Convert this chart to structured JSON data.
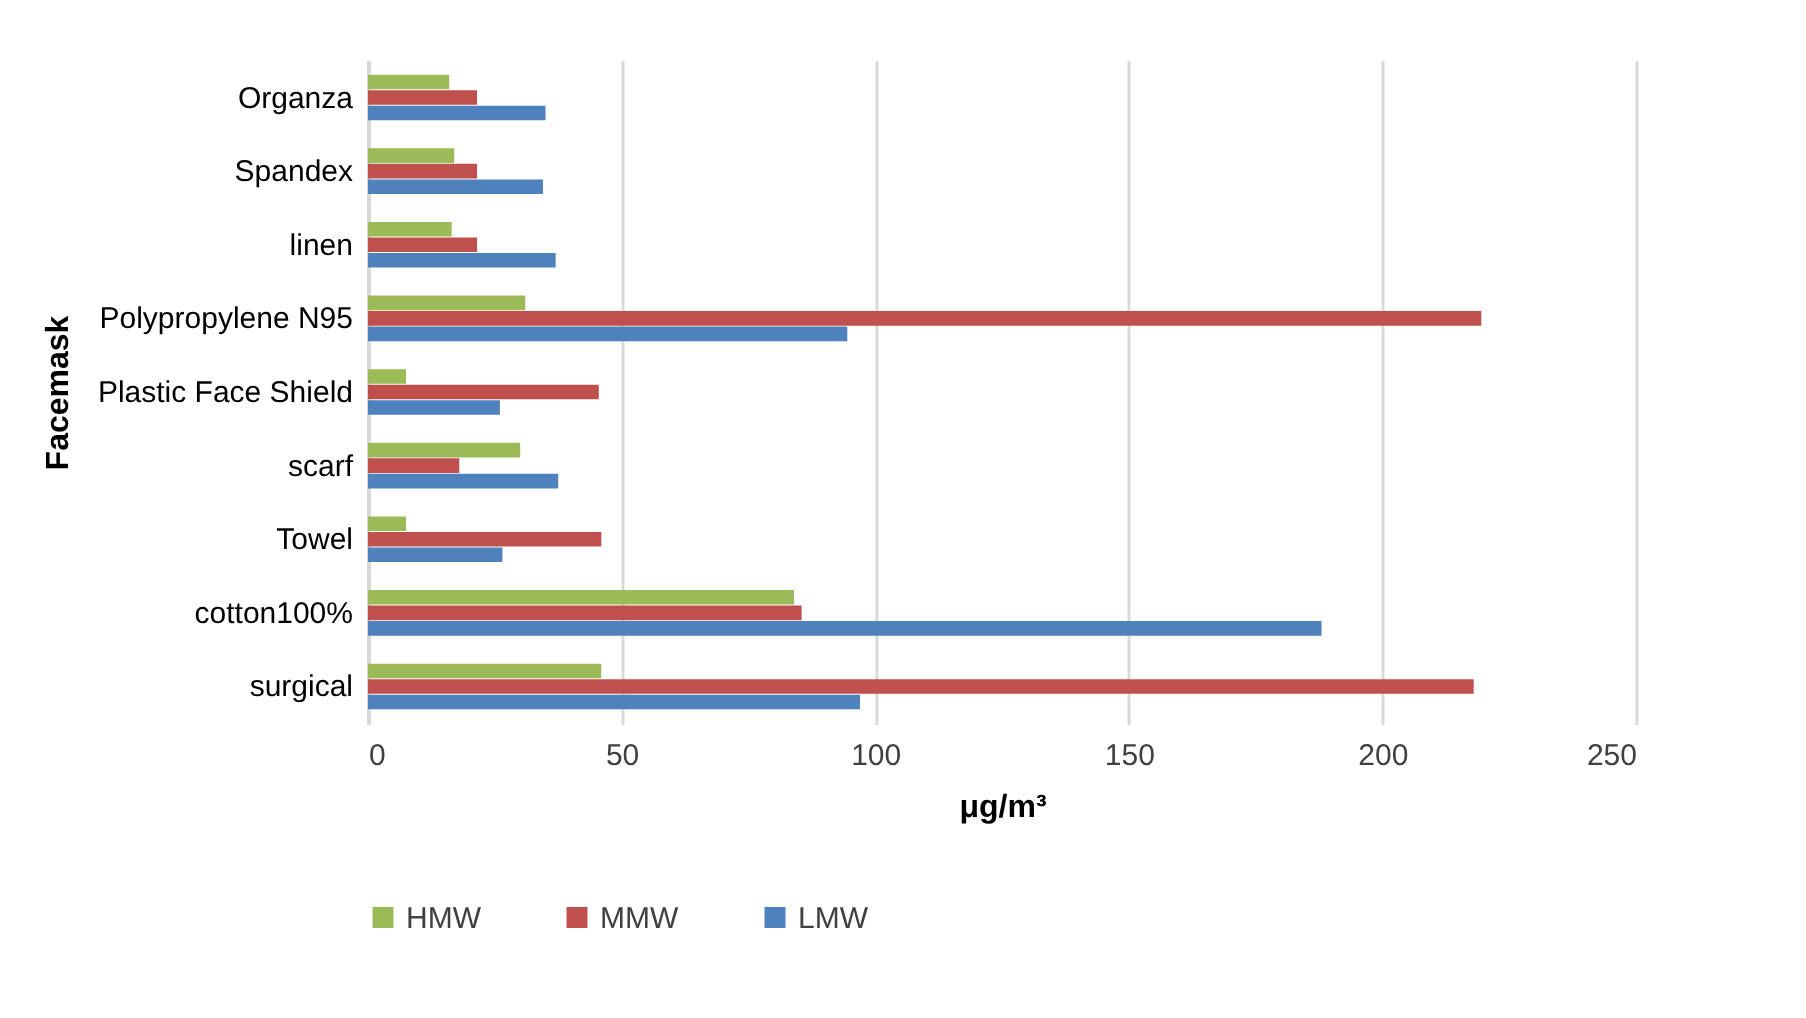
{
  "chart_data": {
    "type": "bar",
    "orientation": "horizontal",
    "xlabel": "μg/m³",
    "ylabel": "Facemask",
    "categories": [
      "Organza",
      "Spandex",
      "linen",
      "Polypropylene N95",
      "Plastic Face Shield",
      "scarf",
      "Towel",
      "cotton100%",
      "surgical"
    ],
    "series": [
      {
        "name": "HMW",
        "color": "#9bbb59",
        "values": [
          16,
          17,
          16.5,
          31,
          7.5,
          30,
          7.5,
          84,
          46
        ]
      },
      {
        "name": "MMW",
        "color": "#c0504d",
        "values": [
          21.5,
          21.5,
          21.5,
          219.5,
          45.5,
          18,
          46,
          85.5,
          218
        ]
      },
      {
        "name": "LMW",
        "color": "#4f81bd",
        "values": [
          35,
          34.5,
          37,
          94.5,
          26,
          37.5,
          26.5,
          188,
          97
        ]
      }
    ],
    "xlim": [
      0,
      250
    ],
    "xticks": [
      0,
      50,
      100,
      150,
      200,
      250
    ],
    "grid": "x",
    "legend": "bottom"
  }
}
